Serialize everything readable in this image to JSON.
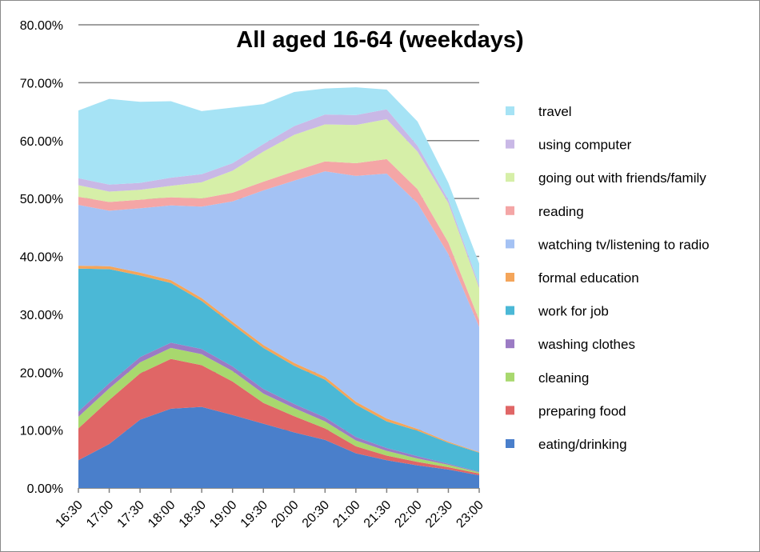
{
  "chart_data": {
    "type": "area",
    "stacked": true,
    "title": "All aged 16-64 (weekdays)",
    "xlabel": "",
    "ylabel": "",
    "ylim": [
      0,
      80
    ],
    "y_ticks": [
      "0.00%",
      "10.00%",
      "20.00%",
      "30.00%",
      "40.00%",
      "50.00%",
      "60.00%",
      "70.00%",
      "80.00%"
    ],
    "grid": "horizontal",
    "legend_position": "right",
    "categories": [
      "16:30",
      "17:00",
      "17:30",
      "18:00",
      "18:30",
      "19:00",
      "19:30",
      "20:00",
      "20:30",
      "21:00",
      "21:30",
      "22:00",
      "22:30",
      "23:00"
    ],
    "series": [
      {
        "name": "eating/drinking",
        "color": "#4a7fcb",
        "values": [
          4.8,
          7.6,
          11.8,
          13.7,
          14.0,
          12.6,
          11.1,
          9.6,
          8.3,
          6.0,
          4.8,
          3.9,
          3.2,
          2.2
        ]
      },
      {
        "name": "preparing food",
        "color": "#e06666",
        "values": [
          5.5,
          7.6,
          8.0,
          8.6,
          7.2,
          5.8,
          3.6,
          2.8,
          2.0,
          1.2,
          0.8,
          0.6,
          0.4,
          0.3
        ]
      },
      {
        "name": "cleaning",
        "color": "#a8d86e",
        "values": [
          2.0,
          2.0,
          1.9,
          1.9,
          1.9,
          1.8,
          1.6,
          1.4,
          1.2,
          1.0,
          0.8,
          0.6,
          0.4,
          0.2
        ]
      },
      {
        "name": "washing clothes",
        "color": "#9b7bc4",
        "values": [
          0.9,
          0.9,
          0.9,
          0.9,
          0.9,
          0.8,
          0.8,
          0.7,
          0.7,
          0.6,
          0.5,
          0.4,
          0.2,
          0.1
        ]
      },
      {
        "name": "work for job",
        "color": "#4bb8d6",
        "values": [
          24.7,
          19.7,
          14.1,
          10.3,
          8.3,
          7.2,
          7.1,
          6.6,
          6.5,
          5.6,
          4.6,
          4.4,
          3.6,
          3.3
        ]
      },
      {
        "name": "formal education",
        "color": "#f4a55a",
        "values": [
          0.5,
          0.5,
          0.5,
          0.5,
          0.5,
          0.5,
          0.5,
          0.5,
          0.5,
          0.5,
          0.5,
          0.3,
          0.2,
          0.1
        ]
      },
      {
        "name": "watching tv/listening to radio",
        "color": "#a4c2f4",
        "values": [
          10.5,
          9.6,
          11.1,
          12.9,
          15.8,
          20.8,
          26.7,
          31.5,
          35.5,
          39.0,
          42.3,
          39.0,
          32.4,
          21.6
        ]
      },
      {
        "name": "reading",
        "color": "#f4a6a6",
        "values": [
          1.4,
          1.5,
          1.5,
          1.4,
          1.4,
          1.5,
          1.5,
          1.6,
          1.7,
          2.2,
          2.5,
          2.4,
          2.0,
          1.2
        ]
      },
      {
        "name": "going out with friends/family",
        "color": "#d6efa8",
        "values": [
          2.0,
          1.8,
          1.7,
          2.0,
          2.8,
          3.8,
          5.2,
          6.3,
          6.4,
          6.6,
          6.9,
          6.5,
          6.8,
          5.5
        ]
      },
      {
        "name": "using computer",
        "color": "#c9b8e6",
        "values": [
          1.2,
          1.2,
          1.2,
          1.4,
          1.4,
          1.3,
          1.3,
          1.5,
          1.7,
          1.7,
          1.7,
          1.0,
          0.6,
          0.5
        ]
      },
      {
        "name": "travel",
        "color": "#a6e3f5",
        "values": [
          11.7,
          14.8,
          14.0,
          13.2,
          10.9,
          9.6,
          6.9,
          5.9,
          4.5,
          4.8,
          3.4,
          4.2,
          2.9,
          3.8
        ]
      }
    ]
  }
}
